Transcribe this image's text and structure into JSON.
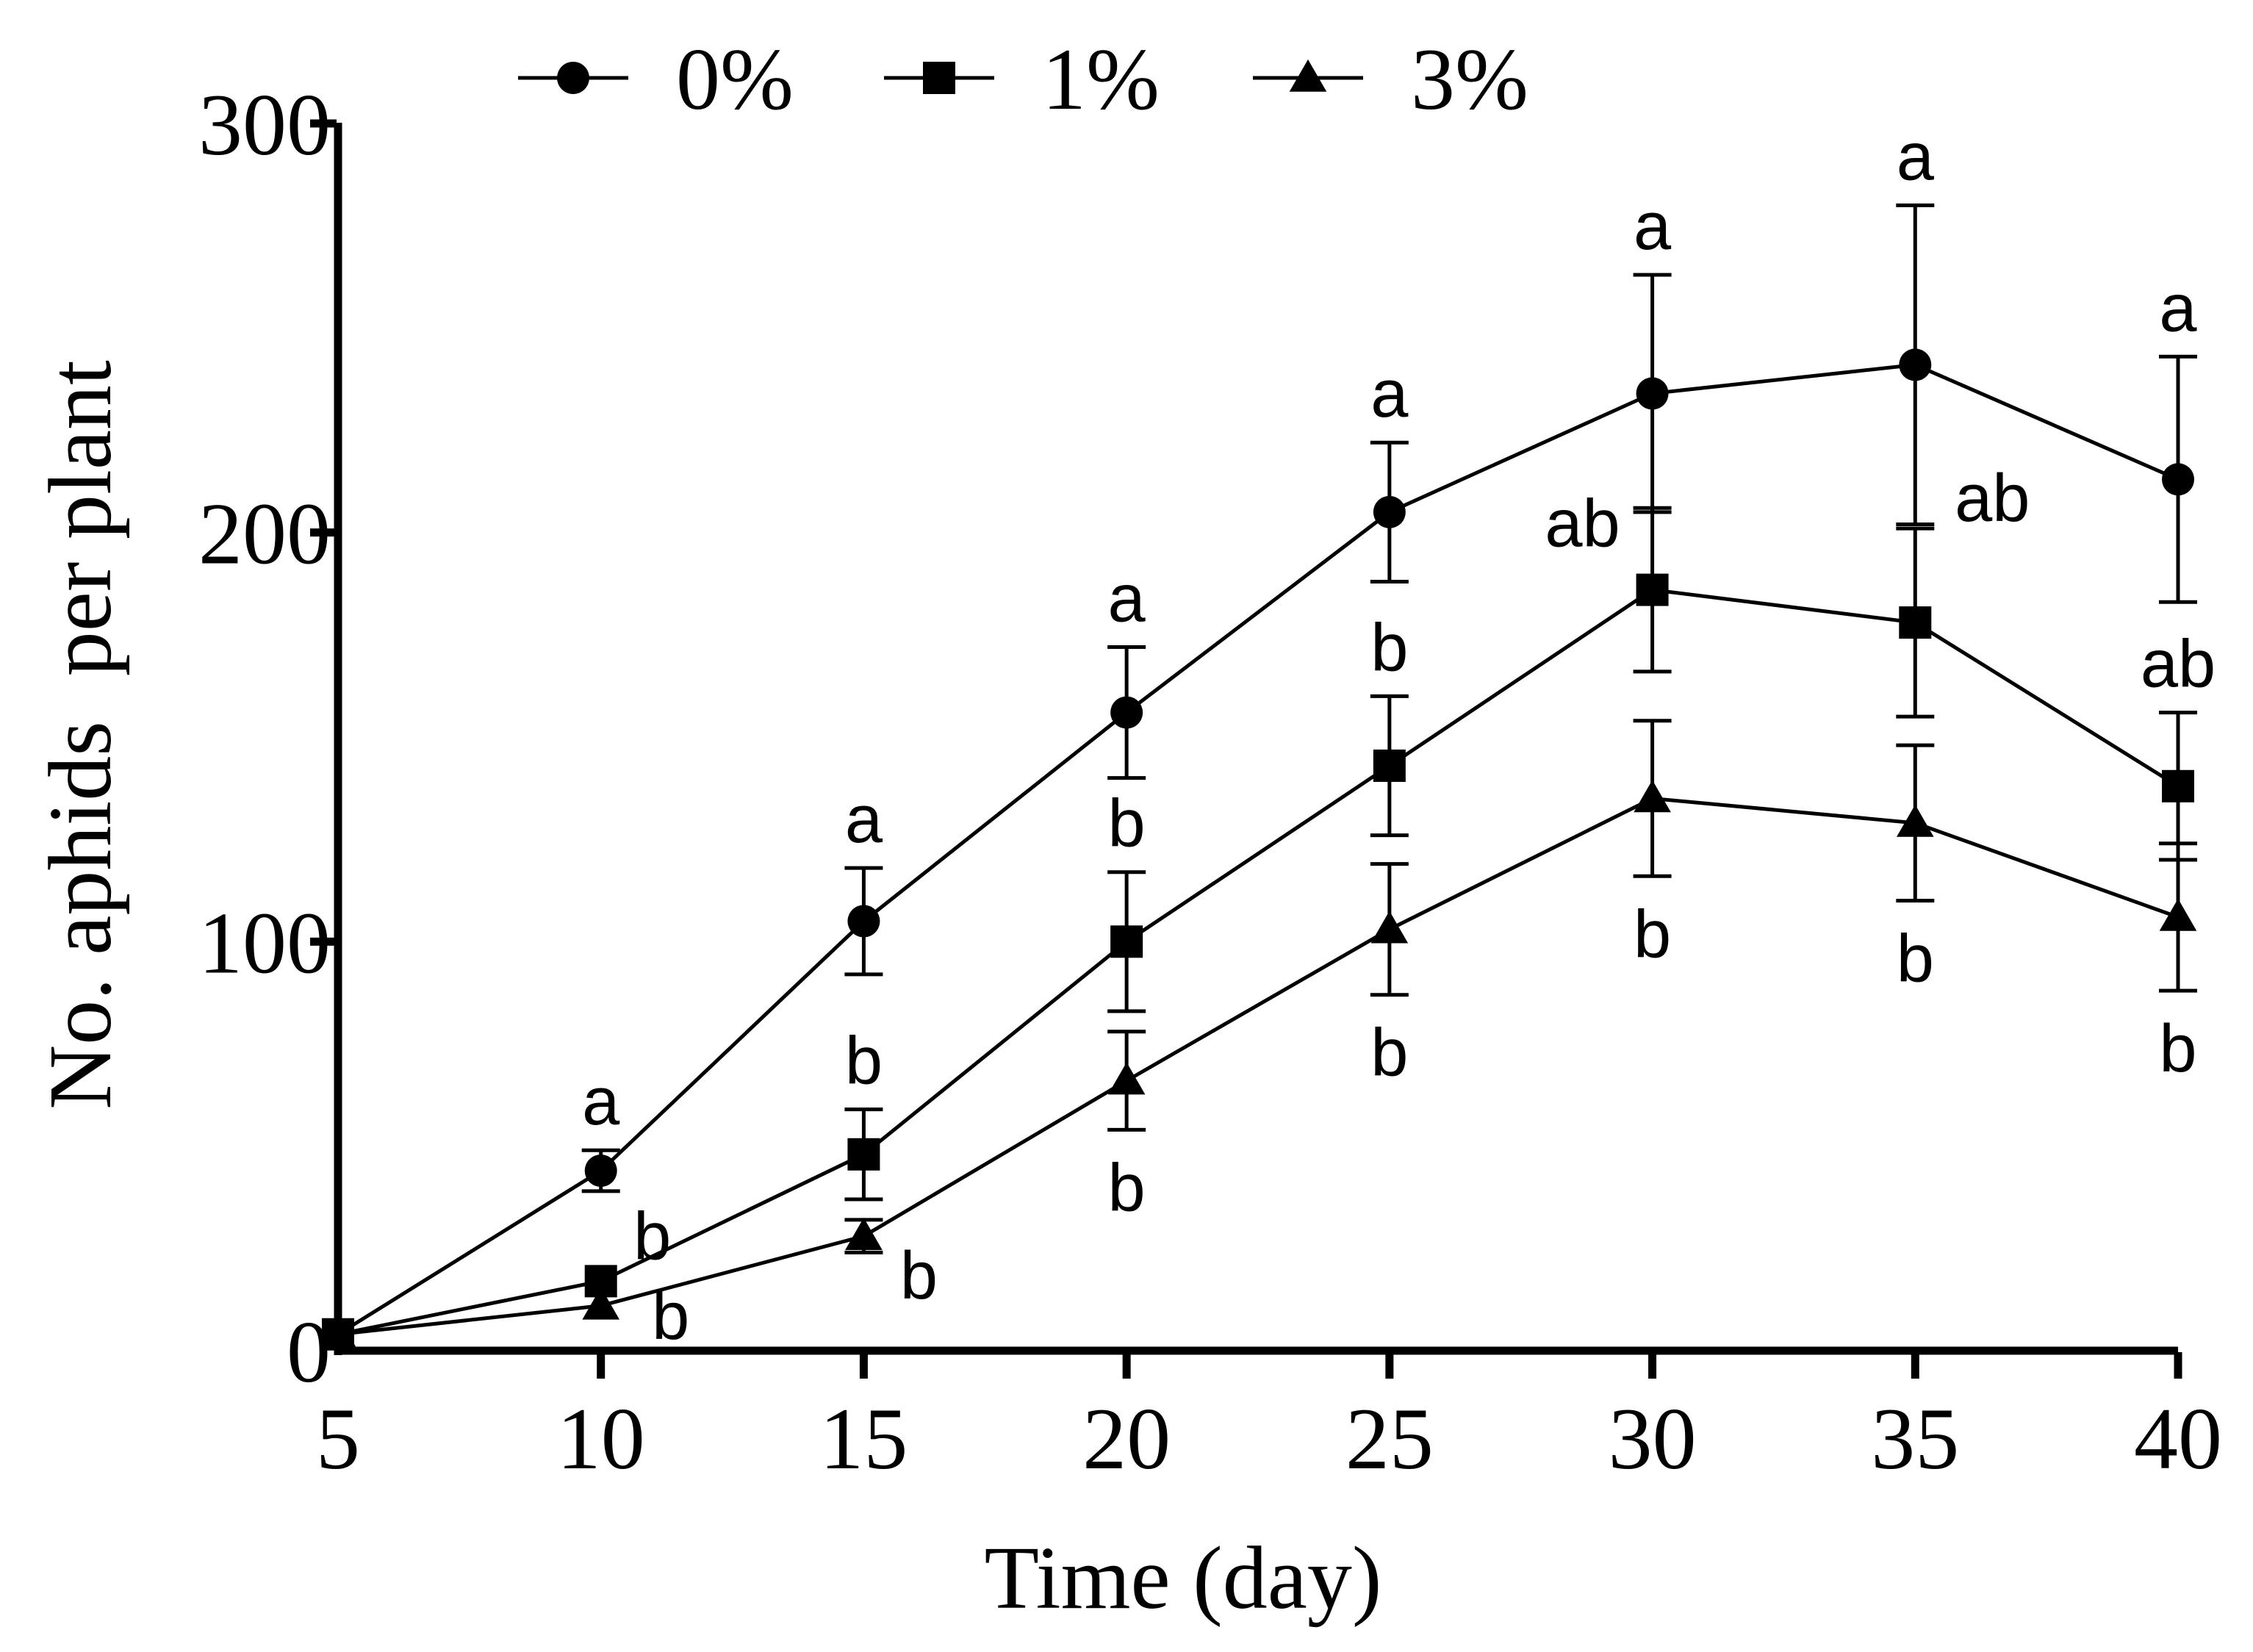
{
  "chart_data": {
    "type": "line",
    "title": "",
    "xlabel": "Time (day)",
    "ylabel": "No. aphids  per plant",
    "xlim": [
      5,
      40
    ],
    "ylim": [
      0,
      300
    ],
    "x": [
      5,
      10,
      15,
      20,
      25,
      30,
      35,
      40
    ],
    "xticks": [
      "5",
      "10",
      "15",
      "20",
      "25",
      "30",
      "35",
      "40"
    ],
    "yticks": [
      "0",
      "100",
      "200",
      "300"
    ],
    "grid": false,
    "legend_position": "top",
    "series": [
      {
        "name": "0%",
        "marker": "circle",
        "values": [
          4,
          44,
          105,
          156,
          205,
          234,
          241,
          213
        ],
        "errors": [
          0,
          5,
          13,
          16,
          17,
          29,
          39,
          30
        ],
        "letters": [
          "",
          "a",
          "a",
          "a",
          "a",
          "a",
          "a",
          "a"
        ]
      },
      {
        "name": "1%",
        "marker": "square",
        "values": [
          4,
          17,
          48,
          100,
          143,
          186,
          178,
          138
        ],
        "errors": [
          0,
          0,
          11,
          17,
          17,
          20,
          23,
          18
        ],
        "letters": [
          "",
          "b",
          "b",
          "b",
          "b",
          "ab",
          "ab",
          "ab"
        ]
      },
      {
        "name": "3%",
        "marker": "triangle",
        "values": [
          4,
          11,
          28,
          66,
          103,
          135,
          129,
          106
        ],
        "errors": [
          0,
          0,
          4,
          12,
          16,
          19,
          19,
          18
        ],
        "letters": [
          "",
          "b",
          "b",
          "b",
          "b",
          "b",
          "b",
          "b"
        ]
      }
    ]
  }
}
